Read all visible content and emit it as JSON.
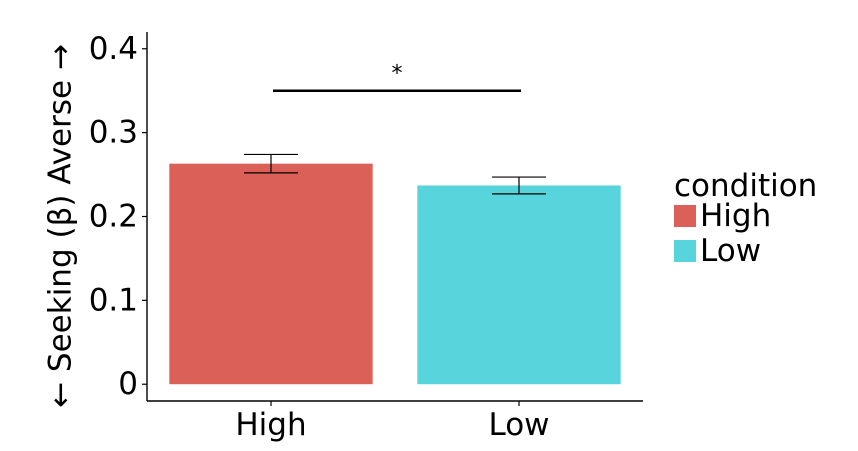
{
  "chart_data": {
    "type": "bar",
    "categories": [
      "High",
      "Low"
    ],
    "values": [
      0.263,
      0.237
    ],
    "error": [
      0.011,
      0.01
    ],
    "colors": [
      "#DB6158",
      "#57D4DC"
    ],
    "ylabel": "← Seeking      (β)      Averse →",
    "xlabel": "",
    "ylim": [
      -0.02,
      0.42
    ],
    "yticks": [
      0,
      0.1,
      0.2,
      0.3,
      0.4
    ],
    "ytick_labels": [
      "0",
      "0.1",
      "0.2",
      "0.3",
      "0.4"
    ],
    "grid": false,
    "legend": {
      "title": "condition",
      "placement": "right",
      "entries": [
        {
          "label": "High",
          "color": "#DB6158"
        },
        {
          "label": "Low",
          "color": "#57D4DC"
        }
      ]
    },
    "significance": {
      "from": "High",
      "to": "Low",
      "y": 0.35,
      "label": "*"
    }
  }
}
